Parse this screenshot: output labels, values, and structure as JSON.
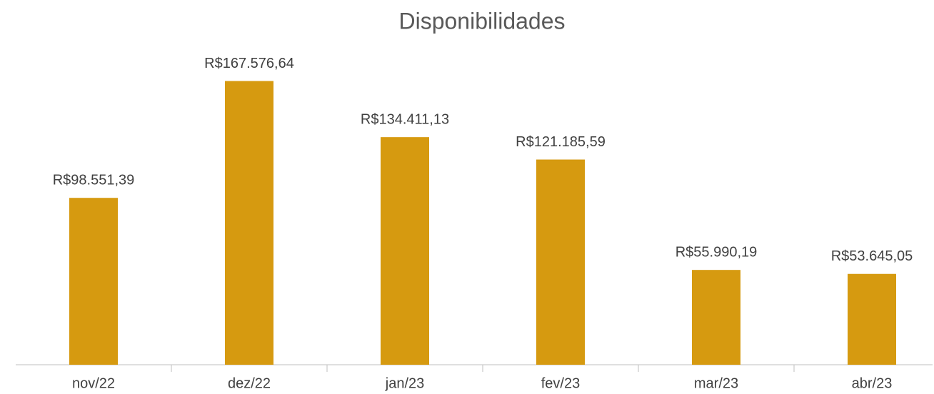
{
  "chart_data": {
    "type": "bar",
    "title": "Disponibilidades",
    "categories": [
      "nov/22",
      "dez/22",
      "jan/23",
      "fev/23",
      "mar/23",
      "abr/23"
    ],
    "values": [
      98551.39,
      167576.64,
      134411.13,
      121185.59,
      55990.19,
      53645.05
    ],
    "value_labels": [
      "R$98.551,39",
      "R$167.576,64",
      "R$134.411,13",
      "R$121.185,59",
      "R$55.990,19",
      "R$53.645,05"
    ],
    "color": "#d69a10",
    "ylim": [
      0,
      180000
    ]
  }
}
